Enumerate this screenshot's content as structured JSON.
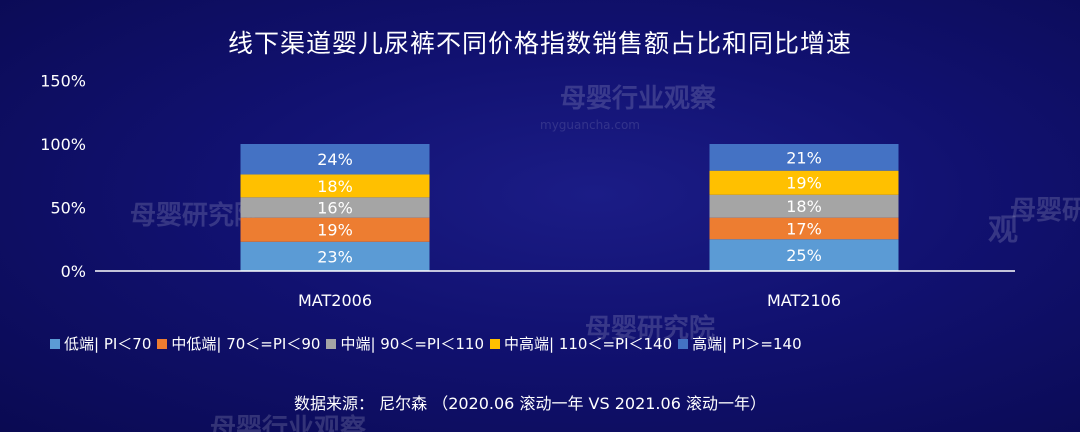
{
  "watermarks": [
    "母婴研究院",
    "母婴行业观察",
    "母婴研究院",
    "母婴行业观察",
    "母婴研究院",
    "观",
    "myguancha.com"
  ],
  "chart_data": {
    "type": "bar",
    "stacked": true,
    "title": "线下渠道婴儿尿裤不同价格指数销售额占比和同比增速",
    "categories": [
      "MAT2006",
      "MAT2106"
    ],
    "y_ticks": [
      "0%",
      "50%",
      "100%",
      "150%"
    ],
    "ylim": [
      0,
      150
    ],
    "series": [
      {
        "name": "低端| PI＜70",
        "color": "#5b9bd5",
        "values": [
          23,
          25
        ],
        "labels": [
          "23%",
          "25%"
        ]
      },
      {
        "name": "中低端| 70＜=PI＜90",
        "color": "#ed7d31",
        "values": [
          19,
          17
        ],
        "labels": [
          "19%",
          "17%"
        ]
      },
      {
        "name": "中端| 90＜=PI＜110",
        "color": "#a5a5a5",
        "values": [
          16,
          18
        ],
        "labels": [
          "16%",
          "18%"
        ]
      },
      {
        "name": "中高端| 110＜=PI＜140",
        "color": "#ffc000",
        "values": [
          18,
          19
        ],
        "labels": [
          "18%",
          "19%"
        ]
      },
      {
        "name": "高端| PI＞=140",
        "color": "#4472c4",
        "values": [
          24,
          21
        ],
        "labels": [
          "24%",
          "21%"
        ]
      }
    ],
    "legend_position": "bottom"
  },
  "source": "数据来源：   尼尔森   （2020.06 滚动一年 VS 2021.06 滚动一年）"
}
